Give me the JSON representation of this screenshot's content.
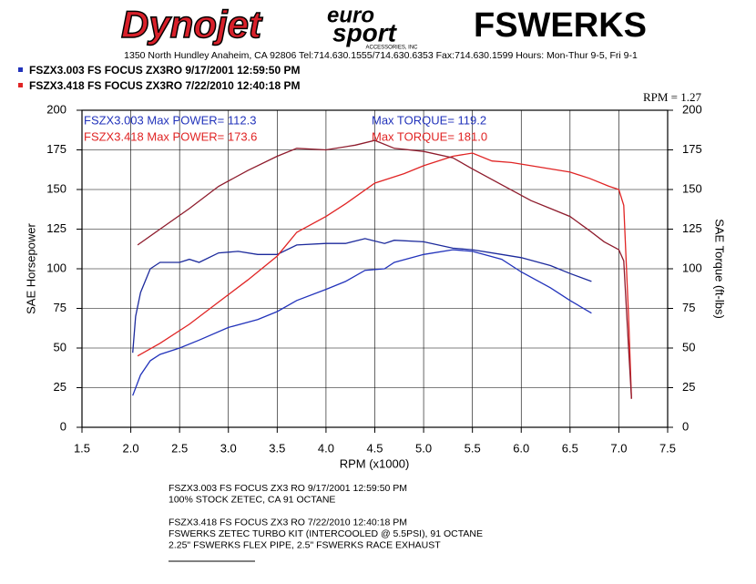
{
  "header": {
    "brand1": "Dynojet",
    "brand2a": "euro",
    "brand2b": "sport",
    "brand2c": "ACCESSORIES, INC",
    "brand3": "FSWERKS",
    "address": "1350 North Hundley  Anaheim, CA 92806 Tel:714.630.1555/714.630.6353 Fax:714.630.1599 Hours: Mon-Thur 9-5, Fri 9-1"
  },
  "chart_data": {
    "type": "line",
    "smoothing": "RPM = 1.27",
    "xlabel": "RPM (x1000)",
    "ylabel": "SAE Horsepower",
    "y2label": "SAE Torque (ft-lbs)",
    "xlim": [
      1.5,
      7.5
    ],
    "ylim": [
      0,
      200
    ],
    "y2lim": [
      0,
      200
    ],
    "grid": true,
    "xticks": [
      1.5,
      {
        "value": 2,
        "label": "2.0"
      },
      2.5,
      {
        "value": 3,
        "label": "3.0"
      },
      3.5,
      {
        "value": 4,
        "label": "4.0"
      },
      4.5,
      {
        "value": 5,
        "label": "5.0"
      },
      5.5,
      {
        "value": 6,
        "label": "6.0"
      },
      6.5,
      {
        "value": 7,
        "label": "7.0"
      },
      7.5
    ],
    "yticks": [
      0,
      25,
      50,
      75,
      100,
      125,
      150,
      175,
      200
    ],
    "y2ticks": [
      0,
      25,
      50,
      75,
      100,
      125,
      150,
      175,
      200
    ],
    "runs": [
      {
        "label": "FSZX3.003   FS FOCUS ZX3RO  9/17/2001 12:59:50 PM",
        "color": "#2233bb",
        "torque_color": "#1c2a9c",
        "power_note": "FSZX3.003  Max POWER= 112.3",
        "torque_note": "Max TORQUE= 119.2",
        "power": {
          "x": [
            2.02,
            2.1,
            2.2,
            2.3,
            2.5,
            2.7,
            3.0,
            3.3,
            3.5,
            3.7,
            4.0,
            4.2,
            4.4,
            4.6,
            4.7,
            5.0,
            5.3,
            5.5,
            5.8,
            6.0,
            6.3,
            6.5,
            6.72
          ],
          "values": [
            20,
            33,
            42,
            46,
            50,
            55,
            63,
            68,
            73,
            80,
            87,
            92,
            99,
            100,
            104,
            109,
            112,
            111,
            106,
            98,
            88,
            80,
            72
          ]
        },
        "torque": {
          "axis": "y2",
          "x": [
            2.02,
            2.05,
            2.1,
            2.2,
            2.3,
            2.5,
            2.6,
            2.7,
            2.9,
            3.1,
            3.3,
            3.5,
            3.7,
            4.0,
            4.2,
            4.4,
            4.6,
            4.7,
            5.0,
            5.3,
            5.5,
            5.8,
            6.0,
            6.3,
            6.5,
            6.72
          ],
          "values": [
            47,
            70,
            85,
            100,
            104,
            104,
            106,
            104,
            110,
            111,
            109,
            109,
            115,
            116,
            116,
            119,
            116,
            118,
            117,
            113,
            112,
            109,
            107,
            102,
            97,
            92
          ]
        }
      },
      {
        "label": "FSZX3.418   FS FOCUS ZX3RO  7/22/2010 12:40:18 PM",
        "color": "#e02424",
        "torque_color": "#8e1b2c",
        "power_note": "FSZX3.418  Max POWER= 173.6",
        "torque_note": "Max TORQUE= 181.0",
        "power": {
          "x": [
            2.07,
            2.3,
            2.6,
            2.9,
            3.2,
            3.5,
            3.7,
            4.0,
            4.2,
            4.5,
            4.8,
            5.0,
            5.3,
            5.5,
            5.7,
            5.9,
            6.1,
            6.3,
            6.5,
            6.7,
            6.9,
            7.0,
            7.05,
            7.1,
            7.13
          ],
          "values": [
            45,
            53,
            65,
            79,
            93,
            108,
            123,
            133,
            141,
            154,
            160,
            165,
            171,
            173,
            168,
            167,
            165,
            163,
            161,
            157,
            152,
            150,
            140,
            70,
            18
          ]
        },
        "torque": {
          "axis": "y2",
          "x": [
            2.07,
            2.3,
            2.6,
            2.9,
            3.2,
            3.5,
            3.7,
            4.0,
            4.3,
            4.5,
            4.7,
            5.0,
            5.3,
            5.5,
            5.8,
            6.1,
            6.3,
            6.5,
            6.7,
            6.85,
            7.0,
            7.05,
            7.1,
            7.13
          ],
          "values": [
            115,
            125,
            138,
            152,
            162,
            171,
            176,
            175,
            178,
            181,
            176,
            174,
            170,
            163,
            153,
            143,
            138,
            133,
            124,
            117,
            112,
            105,
            50,
            18
          ]
        }
      }
    ]
  },
  "notes": [
    [
      "FSZX3.003   FS FOCUS ZX3    RO   9/17/2001 12:59:50 PM",
      "100% STOCK ZETEC, CA 91 OCTANE"
    ],
    [
      "FSZX3.418   FS FOCUS ZX3    RO   7/22/2010 12:40:18 PM",
      "FSWERKS ZETEC TURBO KIT (INTERCOOLED @ 5.5PSI), 91 OCTANE",
      "2.25\" FSWERKS FLEX PIPE, 2.5\" FSWERKS RACE EXHAUST"
    ]
  ]
}
